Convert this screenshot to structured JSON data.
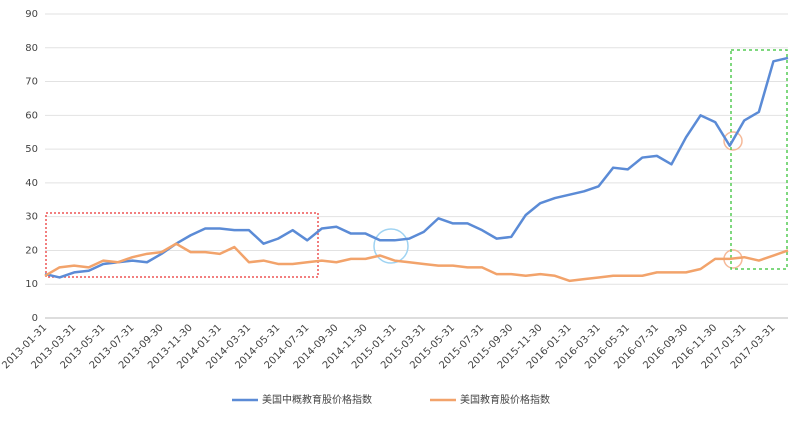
{
  "chart_data": {
    "type": "line",
    "categories": [
      "2013-01-31",
      null,
      "2013-03-31",
      null,
      "2013-05-31",
      null,
      "2013-07-31",
      null,
      "2013-09-30",
      null,
      "2013-11-30",
      null,
      "2014-01-31",
      null,
      "2014-03-31",
      null,
      "2014-05-31",
      null,
      "2014-07-31",
      null,
      "2014-09-30",
      null,
      "2014-11-30",
      null,
      "2015-01-31",
      null,
      "2015-03-31",
      null,
      "2015-05-31",
      null,
      "2015-07-31",
      null,
      "2015-09-30",
      null,
      "2015-11-30",
      null,
      "2016-01-31",
      null,
      "2016-03-31",
      null,
      "2016-05-31",
      null,
      "2016-07-31",
      null,
      "2016-09-30",
      null,
      "2016-11-30",
      null,
      "2017-01-31",
      null,
      "2017-03-31",
      null
    ],
    "series": [
      {
        "name": "美国中概教育股价格指数",
        "color": "#5b8bd6",
        "values": [
          13,
          12,
          13.5,
          14,
          16,
          16.5,
          17,
          16.5,
          19,
          22,
          24.5,
          26.5,
          26.5,
          26,
          26,
          22,
          23.5,
          26,
          23,
          26.5,
          27,
          25,
          25,
          23,
          23,
          23.5,
          25.5,
          29.5,
          28,
          28,
          26,
          23.5,
          24,
          30.5,
          34,
          35.5,
          36.5,
          37.5,
          39,
          44.5,
          44,
          47.5,
          48,
          45.5,
          53.5,
          60,
          58,
          51,
          58.5,
          61,
          76,
          77
        ]
      },
      {
        "name": "美国教育股价格指数",
        "color": "#f2a36b",
        "values": [
          12.5,
          15,
          15.5,
          15,
          17,
          16.5,
          18,
          19,
          19.5,
          22,
          19.5,
          19.5,
          19,
          21,
          16.5,
          17,
          16,
          16,
          16.5,
          17,
          16.5,
          17.5,
          17.5,
          18.5,
          17,
          16.5,
          16,
          15.5,
          15.5,
          15,
          15,
          13,
          13,
          12.5,
          13,
          12.5,
          11,
          11.5,
          12,
          12.5,
          12.5,
          12.5,
          13.5,
          13.5,
          13.5,
          14.5,
          17.5,
          17.5,
          18,
          17,
          18.5,
          20
        ]
      }
    ],
    "ylim": [
      0,
      90
    ],
    "yticks": [
      0,
      10,
      20,
      30,
      40,
      50,
      60,
      70,
      80,
      90
    ],
    "grid": true,
    "legend": "bottom"
  }
}
